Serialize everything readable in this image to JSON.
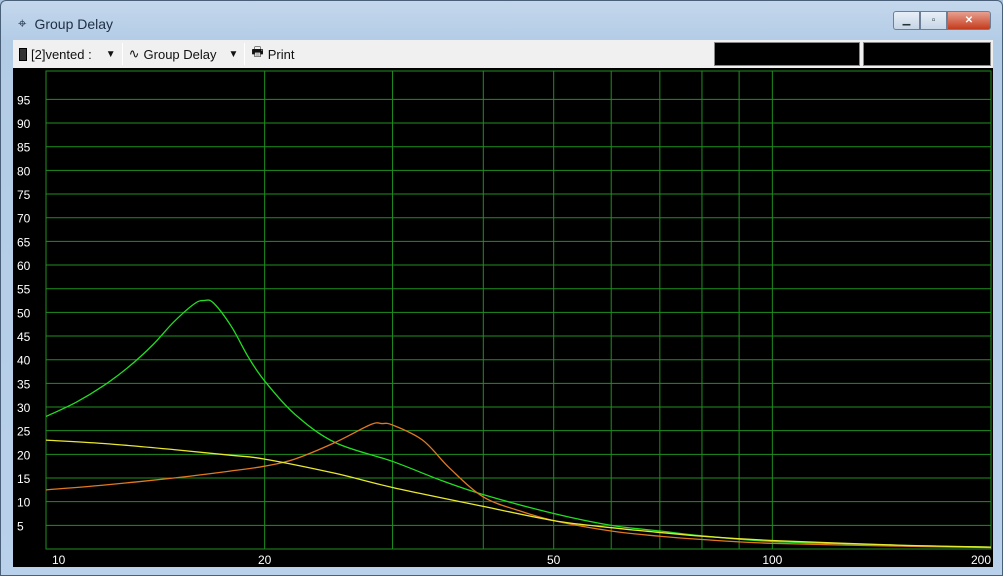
{
  "window": {
    "title": "Group Delay",
    "icon": "crosshair-icon",
    "minimize": "minimize-icon",
    "restore": "restore-icon",
    "close": "close-icon"
  },
  "toolbar": {
    "source_label": "[2]vented :",
    "view_label": "Group Delay",
    "print_label": "Print"
  },
  "chart_data": {
    "type": "line",
    "title": "",
    "xlabel": "",
    "ylabel": "",
    "xscale": "log",
    "xlim": [
      10,
      200
    ],
    "ylim": [
      0,
      101
    ],
    "grid": true,
    "background": "#000000",
    "grid_color": "#1f8f1f",
    "xticks": [
      10,
      20,
      50,
      100,
      200
    ],
    "xgrid": [
      20,
      30,
      40,
      50,
      60,
      70,
      80,
      90,
      100
    ],
    "yticks": [
      5,
      10,
      15,
      20,
      25,
      30,
      35,
      40,
      45,
      50,
      55,
      60,
      65,
      70,
      75,
      80,
      85,
      90,
      95
    ],
    "series": [
      {
        "color": "#22dd22",
        "x": [
          10,
          11,
          12,
          13,
          14,
          15,
          16,
          16.5,
          17,
          18,
          19,
          20,
          22,
          25,
          30,
          35,
          40,
          50,
          60,
          70,
          80,
          100,
          150,
          200
        ],
        "y": [
          28,
          31,
          34.5,
          38.5,
          43,
          48,
          51.8,
          52.5,
          52,
          47,
          40.5,
          35.5,
          28.5,
          22.5,
          18.5,
          14.5,
          11.5,
          7.5,
          5,
          3.8,
          2.8,
          1.6,
          0.8,
          0.4
        ]
      },
      {
        "color": "#e07820",
        "x": [
          10,
          12,
          15,
          18,
          20,
          22,
          25,
          28,
          29,
          30,
          33,
          36,
          40,
          45,
          50,
          60,
          70,
          80,
          100,
          150,
          200
        ],
        "y": [
          12.5,
          13.5,
          15,
          16.5,
          17.5,
          19,
          22.5,
          26.3,
          26.5,
          26.2,
          23,
          17,
          11,
          8,
          6,
          3.8,
          2.7,
          2,
          1.2,
          0.6,
          0.3
        ]
      },
      {
        "color": "#e8e830",
        "x": [
          10,
          12,
          15,
          18,
          20,
          25,
          30,
          40,
          50,
          60,
          70,
          80,
          100,
          150,
          200
        ],
        "y": [
          23,
          22.3,
          21,
          19.8,
          19,
          16,
          13,
          9,
          6,
          4.5,
          3.5,
          2.7,
          1.8,
          0.8,
          0.4
        ]
      }
    ]
  }
}
